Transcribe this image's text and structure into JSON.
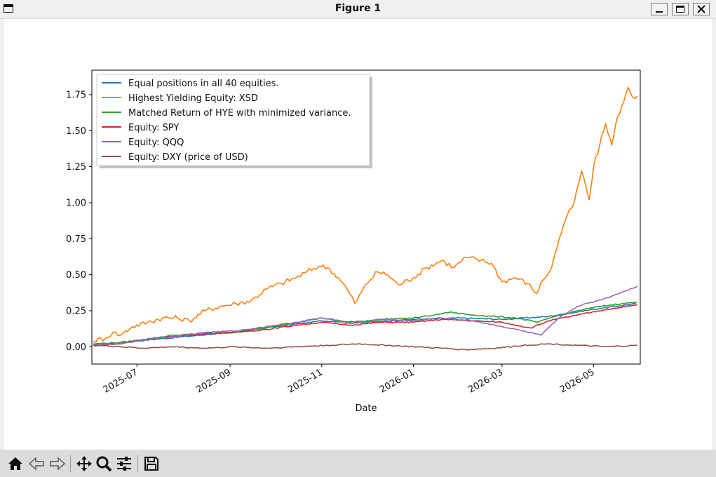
{
  "window": {
    "title": "Figure 1",
    "buttons": [
      "minimize-icon",
      "maximize-icon",
      "close-icon"
    ]
  },
  "toolbar": {
    "buttons": [
      "home-icon",
      "back-icon",
      "forward-icon",
      "pan-icon",
      "zoom-icon",
      "configure-icon",
      "save-icon"
    ]
  },
  "chart_data": {
    "type": "line",
    "title": "",
    "xlabel": "Date",
    "ylabel": "",
    "x_range": [
      "2025-06-01",
      "2026-06-01"
    ],
    "ylim": [
      -0.12,
      1.92
    ],
    "x_ticks": [
      "2025-07",
      "2025-09",
      "2025-11",
      "2026-01",
      "2026-03",
      "2026-05"
    ],
    "y_ticks": [
      "0.00",
      "0.25",
      "0.50",
      "0.75",
      "1.00",
      "1.25",
      "1.50",
      "1.75"
    ],
    "y_tick_values": [
      0,
      0.25,
      0.5,
      0.75,
      1.0,
      1.25,
      1.5,
      1.75
    ],
    "grid": false,
    "legend_position": "top-left",
    "series": [
      {
        "name": "Equal positions in all 40 equities.",
        "color": "#1f77b4",
        "points": [
          [
            "2025-06-02",
            0.01
          ],
          [
            "2025-07-01",
            0.04
          ],
          [
            "2025-08-01",
            0.07
          ],
          [
            "2025-09-01",
            0.1
          ],
          [
            "2025-10-01",
            0.14
          ],
          [
            "2025-11-01",
            0.18
          ],
          [
            "2025-12-01",
            0.17
          ],
          [
            "2026-01-01",
            0.19
          ],
          [
            "2026-02-01",
            0.2
          ],
          [
            "2026-03-01",
            0.19
          ],
          [
            "2026-04-01",
            0.21
          ],
          [
            "2026-05-01",
            0.26
          ],
          [
            "2026-05-29",
            0.3
          ]
        ]
      },
      {
        "name": "Highest Yielding Equity: XSD",
        "color": "#ff7f0e",
        "points": [
          [
            "2025-06-02",
            0.04
          ],
          [
            "2025-06-10",
            0.06
          ],
          [
            "2025-06-15",
            0.1
          ],
          [
            "2025-06-20",
            0.08
          ],
          [
            "2025-06-28",
            0.14
          ],
          [
            "2025-07-08",
            0.17
          ],
          [
            "2025-07-18",
            0.2
          ],
          [
            "2025-07-28",
            0.2
          ],
          [
            "2025-08-05",
            0.18
          ],
          [
            "2025-08-15",
            0.25
          ],
          [
            "2025-08-25",
            0.28
          ],
          [
            "2025-09-05",
            0.3
          ],
          [
            "2025-09-15",
            0.32
          ],
          [
            "2025-09-25",
            0.4
          ],
          [
            "2025-10-05",
            0.44
          ],
          [
            "2025-10-15",
            0.48
          ],
          [
            "2025-10-22",
            0.52
          ],
          [
            "2025-10-30",
            0.56
          ],
          [
            "2025-11-05",
            0.55
          ],
          [
            "2025-11-12",
            0.48
          ],
          [
            "2025-11-18",
            0.4
          ],
          [
            "2025-11-23",
            0.3
          ],
          [
            "2025-12-01",
            0.44
          ],
          [
            "2025-12-08",
            0.52
          ],
          [
            "2025-12-15",
            0.5
          ],
          [
            "2025-12-22",
            0.43
          ],
          [
            "2026-01-01",
            0.48
          ],
          [
            "2026-01-10",
            0.55
          ],
          [
            "2026-01-20",
            0.6
          ],
          [
            "2026-01-28",
            0.55
          ],
          [
            "2026-02-05",
            0.62
          ],
          [
            "2026-02-15",
            0.6
          ],
          [
            "2026-02-22",
            0.58
          ],
          [
            "2026-03-01",
            0.45
          ],
          [
            "2026-03-10",
            0.48
          ],
          [
            "2026-03-18",
            0.44
          ],
          [
            "2026-03-24",
            0.37
          ],
          [
            "2026-03-28",
            0.46
          ],
          [
            "2026-04-03",
            0.55
          ],
          [
            "2026-04-08",
            0.75
          ],
          [
            "2026-04-13",
            0.9
          ],
          [
            "2026-04-18",
            1.0
          ],
          [
            "2026-04-23",
            1.22
          ],
          [
            "2026-04-28",
            1.02
          ],
          [
            "2026-05-01",
            1.25
          ],
          [
            "2026-05-05",
            1.4
          ],
          [
            "2026-05-09",
            1.55
          ],
          [
            "2026-05-13",
            1.4
          ],
          [
            "2026-05-17",
            1.6
          ],
          [
            "2026-05-21",
            1.7
          ],
          [
            "2026-05-24",
            1.8
          ],
          [
            "2026-05-27",
            1.73
          ],
          [
            "2026-05-30",
            1.74
          ]
        ]
      },
      {
        "name": "Matched Return of HYE with minimized variance.",
        "color": "#2ca02c",
        "points": [
          [
            "2025-06-02",
            0.02
          ],
          [
            "2025-06-20",
            0.03
          ],
          [
            "2025-07-05",
            0.05
          ],
          [
            "2025-07-25",
            0.08
          ],
          [
            "2025-08-15",
            0.09
          ],
          [
            "2025-09-05",
            0.1
          ],
          [
            "2025-09-25",
            0.13
          ],
          [
            "2025-10-15",
            0.17
          ],
          [
            "2025-11-01",
            0.2
          ],
          [
            "2025-11-20",
            0.17
          ],
          [
            "2025-12-10",
            0.19
          ],
          [
            "2026-01-01",
            0.2
          ],
          [
            "2026-01-15",
            0.22
          ],
          [
            "2026-01-25",
            0.24
          ],
          [
            "2026-02-10",
            0.22
          ],
          [
            "2026-02-25",
            0.21
          ],
          [
            "2026-03-10",
            0.2
          ],
          [
            "2026-03-25",
            0.17
          ],
          [
            "2026-04-05",
            0.21
          ],
          [
            "2026-04-20",
            0.25
          ],
          [
            "2026-05-05",
            0.28
          ],
          [
            "2026-05-20",
            0.3
          ],
          [
            "2026-05-30",
            0.31
          ]
        ]
      },
      {
        "name": "Equity: SPY",
        "color": "#d62728",
        "points": [
          [
            "2025-06-02",
            0.01
          ],
          [
            "2025-06-20",
            0.02
          ],
          [
            "2025-07-05",
            0.05
          ],
          [
            "2025-07-25",
            0.07
          ],
          [
            "2025-08-15",
            0.09
          ],
          [
            "2025-09-05",
            0.1
          ],
          [
            "2025-09-25",
            0.12
          ],
          [
            "2025-10-15",
            0.15
          ],
          [
            "2025-11-01",
            0.17
          ],
          [
            "2025-11-20",
            0.15
          ],
          [
            "2025-12-10",
            0.17
          ],
          [
            "2026-01-01",
            0.17
          ],
          [
            "2026-01-20",
            0.19
          ],
          [
            "2026-02-10",
            0.18
          ],
          [
            "2026-03-01",
            0.17
          ],
          [
            "2026-03-20",
            0.13
          ],
          [
            "2026-04-01",
            0.18
          ],
          [
            "2026-04-20",
            0.22
          ],
          [
            "2026-05-10",
            0.26
          ],
          [
            "2026-05-30",
            0.29
          ]
        ]
      },
      {
        "name": "Equity: QQQ",
        "color": "#9467bd",
        "points": [
          [
            "2025-06-02",
            0.01
          ],
          [
            "2025-06-20",
            0.02
          ],
          [
            "2025-07-05",
            0.05
          ],
          [
            "2025-07-25",
            0.07
          ],
          [
            "2025-08-15",
            0.1
          ],
          [
            "2025-09-05",
            0.11
          ],
          [
            "2025-09-25",
            0.14
          ],
          [
            "2025-10-15",
            0.17
          ],
          [
            "2025-11-01",
            0.2
          ],
          [
            "2025-11-20",
            0.16
          ],
          [
            "2025-12-10",
            0.19
          ],
          [
            "2026-01-01",
            0.18
          ],
          [
            "2026-01-20",
            0.2
          ],
          [
            "2026-02-10",
            0.18
          ],
          [
            "2026-03-01",
            0.14
          ],
          [
            "2026-03-15",
            0.11
          ],
          [
            "2026-03-27",
            0.08
          ],
          [
            "2026-04-08",
            0.2
          ],
          [
            "2026-04-20",
            0.28
          ],
          [
            "2026-05-10",
            0.34
          ],
          [
            "2026-05-20",
            0.38
          ],
          [
            "2026-05-30",
            0.42
          ]
        ]
      },
      {
        "name": "Equity: DXY (price of USD)",
        "color": "#8c564b",
        "points": [
          [
            "2025-06-02",
            0.01
          ],
          [
            "2025-06-20",
            0.0
          ],
          [
            "2025-07-05",
            -0.01
          ],
          [
            "2025-07-25",
            0.0
          ],
          [
            "2025-08-15",
            -0.01
          ],
          [
            "2025-09-05",
            0.0
          ],
          [
            "2025-09-25",
            -0.01
          ],
          [
            "2025-10-15",
            0.0
          ],
          [
            "2025-11-05",
            0.01
          ],
          [
            "2025-11-25",
            0.02
          ],
          [
            "2025-12-15",
            0.01
          ],
          [
            "2026-01-01",
            0.0
          ],
          [
            "2026-01-20",
            -0.01
          ],
          [
            "2026-02-05",
            -0.02
          ],
          [
            "2026-02-25",
            -0.01
          ],
          [
            "2026-03-15",
            0.01
          ],
          [
            "2026-04-01",
            0.02
          ],
          [
            "2026-04-20",
            0.01
          ],
          [
            "2026-05-10",
            0.0
          ],
          [
            "2026-05-30",
            0.01
          ]
        ]
      }
    ]
  }
}
